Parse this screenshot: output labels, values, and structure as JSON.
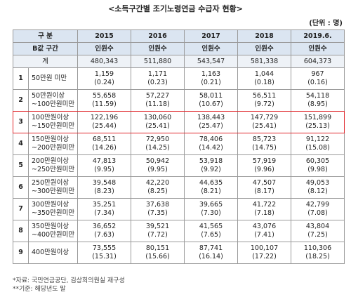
{
  "title": "<소득구간별 조기노령연금 수급자 현황>",
  "unit": "(단위 : 명)",
  "table": {
    "header": [
      "구 분",
      "2015",
      "2016",
      "2017",
      "2018",
      "2019.6."
    ],
    "subheader": [
      "B값 구간",
      "인원수",
      "인원수",
      "인원수",
      "인원수",
      "인원수"
    ],
    "total": {
      "label": "계",
      "values": [
        "480,343",
        "511,880",
        "543,547",
        "581,338",
        "604,373"
      ]
    },
    "rows": [
      {
        "no": "1",
        "label": [
          "50만원 미만"
        ],
        "counts": [
          "1,159",
          "1,171",
          "1,163",
          "1,044",
          "967"
        ],
        "shares": [
          "(0.24)",
          "(0.23)",
          "(0.21)",
          "(0.18)",
          "(0.16)"
        ]
      },
      {
        "no": "2",
        "label": [
          "50만원이상",
          "~100만원미만"
        ],
        "counts": [
          "55,658",
          "57,227",
          "58,011",
          "56,511",
          "54,118"
        ],
        "shares": [
          "(11.59)",
          "(11.18)",
          "(10.67)",
          "(9.72)",
          "(8.95)"
        ]
      },
      {
        "no": "3",
        "label": [
          "100만원이상",
          "~150만원미만"
        ],
        "counts": [
          "122,196",
          "130,060",
          "138,443",
          "147,729",
          "151,899"
        ],
        "shares": [
          "(25.44)",
          "(25.41)",
          "(25.47)",
          "(25.41)",
          "(25.13)"
        ]
      },
      {
        "no": "4",
        "label": [
          "150만원이상",
          "~200만원미만"
        ],
        "counts": [
          "68,511",
          "72,950",
          "78,406",
          "85,723",
          "91,122"
        ],
        "shares": [
          "(14.26)",
          "(14.25)",
          "(14.42)",
          "(14.75)",
          "(15.08)"
        ]
      },
      {
        "no": "5",
        "label": [
          "200만원이상",
          "~250만원미만"
        ],
        "counts": [
          "47,813",
          "50,942",
          "53,918",
          "57,919",
          "60,305"
        ],
        "shares": [
          "(9.95)",
          "(9.95)",
          "(9.92)",
          "(9.96)",
          "(9.98)"
        ]
      },
      {
        "no": "6",
        "label": [
          "250만원이상",
          "~300만원미만"
        ],
        "counts": [
          "39,548",
          "42,220",
          "44,635",
          "47,507",
          "49,053"
        ],
        "shares": [
          "(8.23)",
          "(8.25)",
          "(8.21)",
          "(8.17)",
          "(8.12)"
        ]
      },
      {
        "no": "7",
        "label": [
          "300만원이상",
          "~350만원미만"
        ],
        "counts": [
          "35,251",
          "37,638",
          "39,665",
          "41,722",
          "42,799"
        ],
        "shares": [
          "(7.34)",
          "(7.35)",
          "(7.30)",
          "(7.18)",
          "(7.08)"
        ]
      },
      {
        "no": "8",
        "label": [
          "350만원이상",
          "~400만원미만"
        ],
        "counts": [
          "36,652",
          "39,521",
          "41,565",
          "43,076",
          "43,804"
        ],
        "shares": [
          "(7.63)",
          "(7.72)",
          "(7.65)",
          "(7.41)",
          "(7.25)"
        ]
      },
      {
        "no": "9",
        "label": [
          "400만원이상"
        ],
        "counts": [
          "73,555",
          "80,151",
          "87,741",
          "100,107",
          "110,306"
        ],
        "shares": [
          "(15.31)",
          "(15.66)",
          "(16.14)",
          "(17.22)",
          "(18.25)"
        ]
      }
    ]
  },
  "notes": [
    "*자료: 국민연금공단, 김상희의원실 재구성",
    "**기준: 해당년도 말"
  ]
}
